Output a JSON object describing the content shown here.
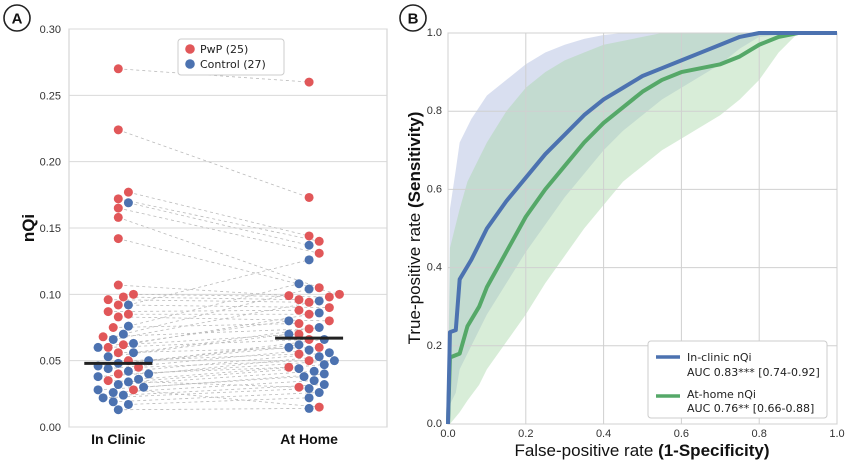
{
  "panels": [
    {
      "letter": "A",
      "chart_data": {
        "type": "scatter",
        "subtype": "paired swarm plot",
        "ylabel": "nQi",
        "categories": [
          "In Clinic",
          "At Home"
        ],
        "ylim": [
          0,
          0.3
        ],
        "yticks": [
          "0.00",
          "0.05",
          "0.10",
          "0.15",
          "0.20",
          "0.25",
          "0.30"
        ],
        "grid": "horizontal",
        "legend": {
          "placement": "top-center",
          "entries": [
            "PwP (25)",
            "Control (27)"
          ]
        },
        "series": [
          {
            "name": "PwP (25)",
            "color": "#e15759",
            "in_clinic": [
              0.27,
              0.224,
              0.177,
              0.172,
              0.165,
              0.158,
              0.142,
              0.107,
              0.1,
              0.098,
              0.096,
              0.092,
              0.087,
              0.085,
              0.083,
              0.075,
              0.068,
              0.062,
              0.06,
              0.056,
              0.05,
              0.045,
              0.04,
              0.035,
              0.028
            ],
            "at_home": [
              0.26,
              0.173,
              0.144,
              0.14,
              0.131,
              0.105,
              0.1,
              0.099,
              0.098,
              0.096,
              0.094,
              0.09,
              0.088,
              0.085,
              0.08,
              0.078,
              0.074,
              0.07,
              0.066,
              0.06,
              0.055,
              0.05,
              0.045,
              0.03,
              0.015
            ]
          },
          {
            "name": "Control (27)",
            "color": "#4c72b0",
            "in_clinic": [
              0.169,
              0.092,
              0.076,
              0.07,
              0.066,
              0.063,
              0.06,
              0.056,
              0.053,
              0.05,
              0.048,
              0.046,
              0.044,
              0.042,
              0.04,
              0.038,
              0.036,
              0.034,
              0.032,
              0.03,
              0.028,
              0.026,
              0.024,
              0.022,
              0.019,
              0.017,
              0.013
            ],
            "at_home": [
              0.137,
              0.126,
              0.108,
              0.104,
              0.095,
              0.086,
              0.08,
              0.075,
              0.07,
              0.066,
              0.062,
              0.06,
              0.058,
              0.056,
              0.053,
              0.05,
              0.047,
              0.044,
              0.042,
              0.04,
              0.038,
              0.035,
              0.032,
              0.029,
              0.026,
              0.022,
              0.014
            ]
          }
        ],
        "medians": {
          "in_clinic": 0.048,
          "at_home": 0.067
        }
      }
    },
    {
      "letter": "B",
      "chart_data": {
        "type": "line",
        "subtype": "ROC curves with confidence bands",
        "xlabel_plain": "False-positive rate ",
        "xlabel_bold": "(1-Specificity)",
        "ylabel_plain": "True-positive rate ",
        "ylabel_bold": "(Sensitivity)",
        "xlim": [
          0,
          1
        ],
        "ylim": [
          0,
          1
        ],
        "xticks": [
          "0.0",
          "0.2",
          "0.4",
          "0.6",
          "0.8",
          "1.0"
        ],
        "yticks": [
          "0.0",
          "0.2",
          "0.4",
          "0.6",
          "0.8",
          "1.0"
        ],
        "grid": true,
        "legend_placement": "bottom-right",
        "series": [
          {
            "name": "In-clinic nQi",
            "auc": "AUC 0.83*** [0.74-0.92]",
            "color": "#4c72b0",
            "band_color": "#aab8dd",
            "x": [
              0,
              0.005,
              0.02,
              0.03,
              0.06,
              0.1,
              0.15,
              0.2,
              0.25,
              0.3,
              0.35,
              0.4,
              0.45,
              0.5,
              0.55,
              0.6,
              0.65,
              0.7,
              0.75,
              0.8,
              0.9,
              1.0
            ],
            "y": [
              0,
              0.235,
              0.24,
              0.37,
              0.42,
              0.5,
              0.57,
              0.63,
              0.69,
              0.74,
              0.79,
              0.83,
              0.86,
              0.89,
              0.91,
              0.93,
              0.95,
              0.97,
              0.99,
              1.0,
              1.0,
              1.0
            ],
            "lower": [
              0,
              0.05,
              0.08,
              0.14,
              0.2,
              0.28,
              0.36,
              0.44,
              0.51,
              0.58,
              0.64,
              0.7,
              0.75,
              0.79,
              0.83,
              0.86,
              0.89,
              0.92,
              0.96,
              0.99,
              1.0,
              1.0
            ],
            "upper": [
              0,
              0.55,
              0.65,
              0.72,
              0.78,
              0.84,
              0.88,
              0.92,
              0.95,
              0.97,
              0.985,
              0.995,
              1.0,
              1.0,
              1.0,
              1.0,
              1.0,
              1.0,
              1.0,
              1.0,
              1.0,
              1.0
            ]
          },
          {
            "name": "At-home nQi",
            "auc": "AUC 0.76** [0.66-0.88]",
            "color": "#55a868",
            "band_color": "#a8d8a8",
            "x": [
              0,
              0.005,
              0.03,
              0.05,
              0.08,
              0.1,
              0.15,
              0.2,
              0.25,
              0.3,
              0.35,
              0.4,
              0.45,
              0.5,
              0.55,
              0.6,
              0.65,
              0.7,
              0.75,
              0.8,
              0.85,
              0.9,
              1.0
            ],
            "y": [
              0,
              0.17,
              0.18,
              0.25,
              0.3,
              0.35,
              0.44,
              0.53,
              0.6,
              0.66,
              0.72,
              0.77,
              0.81,
              0.85,
              0.88,
              0.9,
              0.91,
              0.92,
              0.94,
              0.97,
              0.99,
              1.0,
              1.0
            ],
            "lower": [
              0,
              0.0,
              0.03,
              0.06,
              0.1,
              0.14,
              0.21,
              0.28,
              0.36,
              0.43,
              0.5,
              0.56,
              0.62,
              0.66,
              0.7,
              0.73,
              0.76,
              0.79,
              0.83,
              0.88,
              0.95,
              1.0,
              1.0
            ],
            "upper": [
              0,
              0.45,
              0.55,
              0.62,
              0.68,
              0.72,
              0.8,
              0.86,
              0.9,
              0.93,
              0.95,
              0.97,
              0.98,
              0.99,
              1.0,
              1.0,
              1.0,
              1.0,
              1.0,
              1.0,
              1.0,
              1.0,
              1.0
            ]
          }
        ]
      }
    }
  ]
}
